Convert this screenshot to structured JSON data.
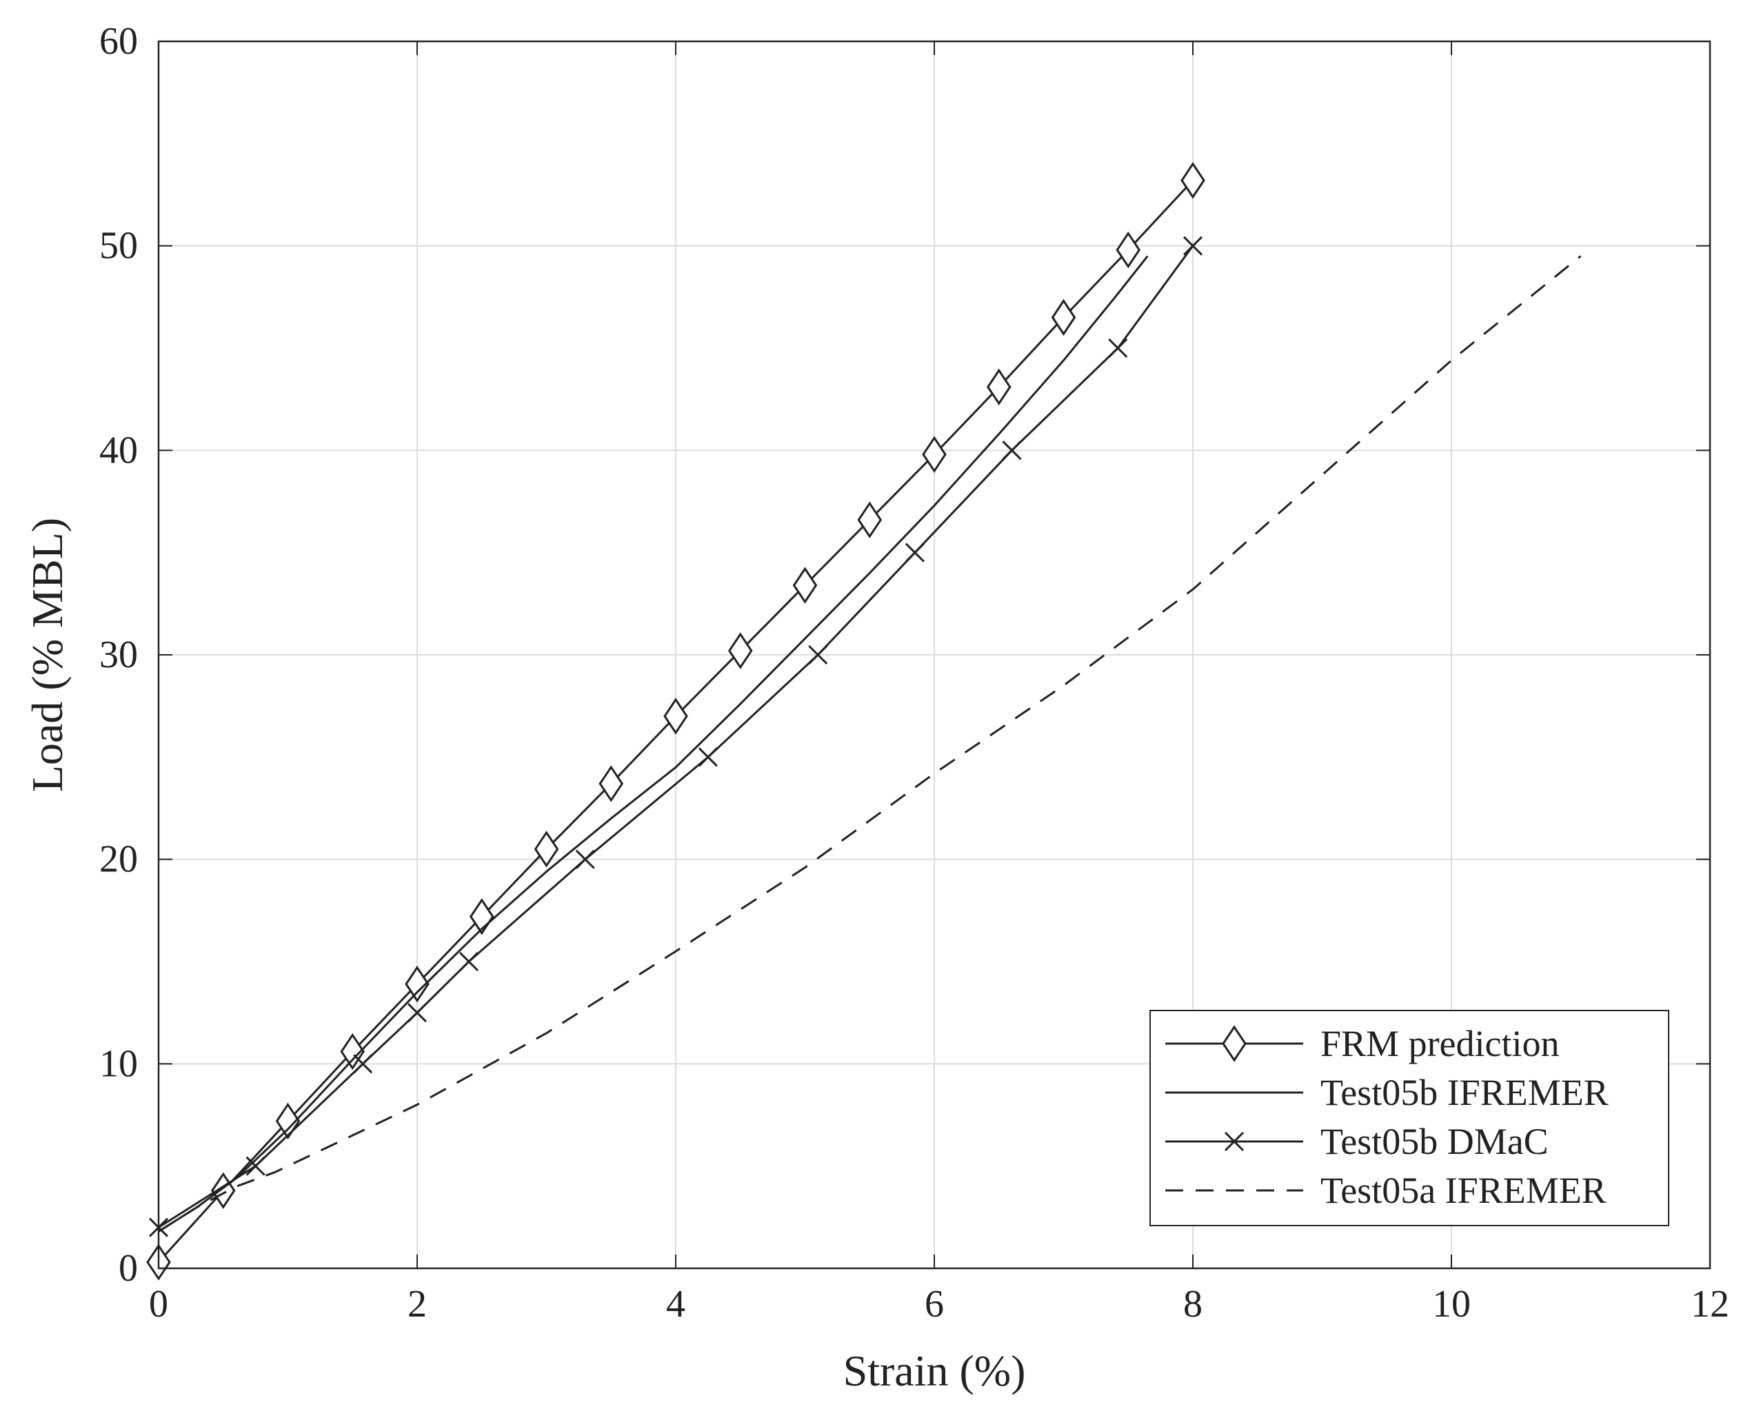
{
  "chart_data": {
    "type": "line",
    "xlabel": "Strain (%)",
    "ylabel": "Load (% MBL)",
    "xlim": [
      0,
      12
    ],
    "ylim": [
      0,
      60
    ],
    "xticks": [
      0,
      2,
      4,
      6,
      8,
      10,
      12
    ],
    "yticks": [
      0,
      10,
      20,
      30,
      40,
      50,
      60
    ],
    "grid": true,
    "legend_position": "bottom-right",
    "series": [
      {
        "name": "FRM prediction",
        "marker": "diamond",
        "dash": "solid",
        "x": [
          0,
          0.5,
          1.0,
          1.5,
          2.0,
          2.5,
          3.0,
          3.5,
          4.0,
          4.5,
          5.0,
          5.5,
          6.0,
          6.5,
          7.0,
          7.5,
          8.0
        ],
        "y": [
          0.3,
          3.8,
          7.2,
          10.6,
          13.9,
          17.2,
          20.5,
          23.7,
          27.0,
          30.2,
          33.4,
          36.6,
          39.8,
          43.1,
          46.5,
          49.8,
          53.2
        ]
      },
      {
        "name": "Test05b IFREMER",
        "marker": "none",
        "dash": "solid",
        "x": [
          0,
          0.3,
          0.6,
          1.0,
          1.5,
          2.0,
          2.5,
          3.0,
          3.5,
          4.0,
          4.5,
          5.0,
          5.5,
          6.0,
          6.5,
          7.0,
          7.4,
          7.65
        ],
        "y": [
          1.8,
          3.0,
          4.4,
          6.8,
          10.2,
          13.5,
          16.6,
          19.4,
          22.0,
          24.5,
          27.6,
          30.8,
          34.0,
          37.3,
          40.8,
          44.4,
          47.5,
          49.5
        ]
      },
      {
        "name": "Test05b DMaC",
        "marker": "x",
        "dash": "solid",
        "x": [
          0.0,
          0.75,
          1.58,
          2.0,
          2.4,
          3.3,
          4.25,
          5.1,
          5.85,
          6.6,
          7.42,
          8.0
        ],
        "y": [
          2.0,
          5.0,
          10.0,
          12.5,
          15.0,
          20.0,
          25.0,
          30.0,
          35.0,
          40.0,
          45.0,
          50.0
        ]
      },
      {
        "name": "Test05a IFREMER",
        "marker": "none",
        "dash": "dashed",
        "x": [
          0.0,
          0.3,
          0.6,
          0.9,
          1.5,
          2.0,
          3.0,
          4.0,
          5.0,
          6.0,
          7.0,
          8.0,
          9.0,
          10.0,
          11.0
        ],
        "y": [
          1.8,
          3.0,
          4.0,
          4.7,
          6.5,
          8.0,
          11.5,
          15.5,
          19.6,
          24.2,
          28.5,
          33.2,
          38.8,
          44.4,
          49.5
        ]
      }
    ]
  }
}
